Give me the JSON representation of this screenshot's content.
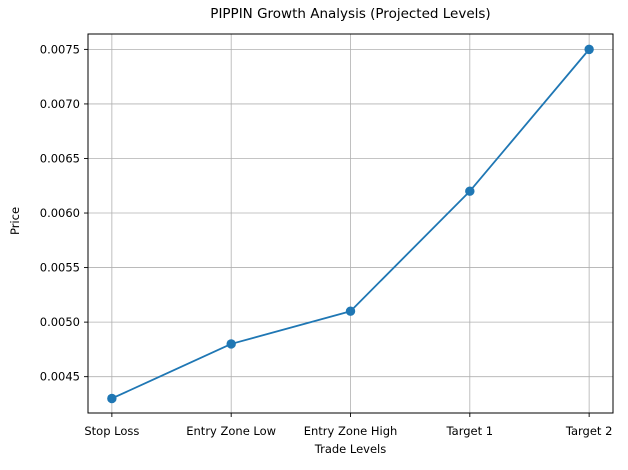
{
  "chart_data": {
    "type": "line",
    "title": "PIPPIN Growth Analysis (Projected Levels)",
    "xlabel": "Trade Levels",
    "ylabel": "Price",
    "categories": [
      "Stop Loss",
      "Entry Zone Low",
      "Entry Zone High",
      "Target 1",
      "Target 2"
    ],
    "values": [
      0.0043,
      0.0048,
      0.0051,
      0.0062,
      0.0075
    ],
    "yticks": [
      0.0045,
      0.005,
      0.0055,
      0.006,
      0.0065,
      0.007,
      0.0075
    ],
    "ytick_labels": [
      "0.0045",
      "0.0050",
      "0.0055",
      "0.0060",
      "0.0065",
      "0.0070",
      "0.0075"
    ],
    "ylim": [
      0.004167,
      0.007641
    ],
    "xlim": [
      -0.2,
      4.2
    ],
    "grid": true,
    "legend": "none",
    "line_color": "#1f77b4",
    "marker": "circle",
    "marker_color": "#1f77b4",
    "grid_color": "#b0b0b0",
    "spine_color": "#000000",
    "text_color": "#000000",
    "background_color": "#ffffff"
  }
}
